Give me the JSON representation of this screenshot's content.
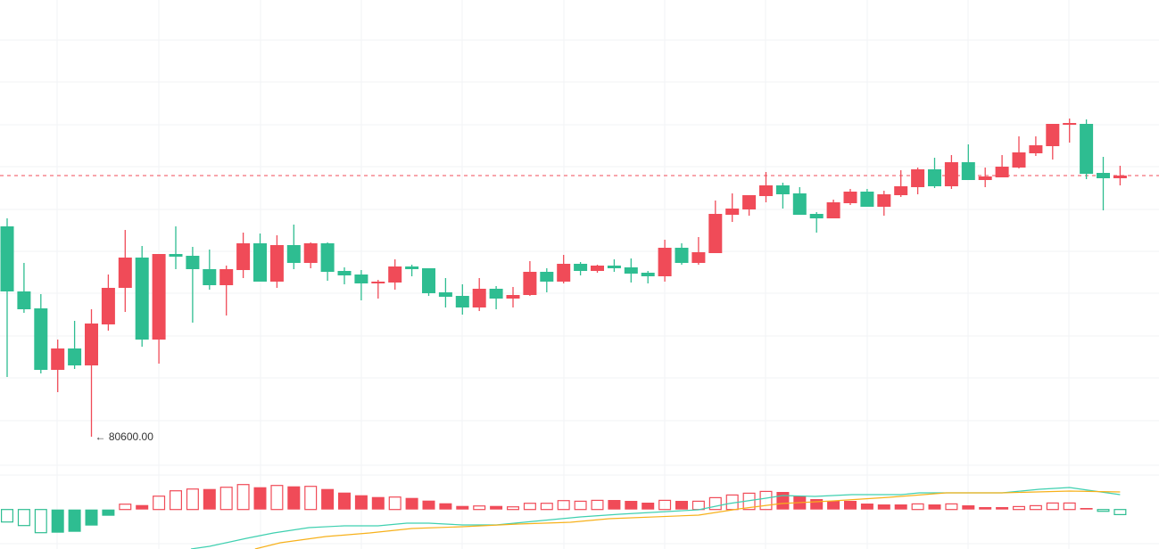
{
  "chart_data": {
    "type": "candlestick",
    "title": "",
    "colors": {
      "up": "#f04b58",
      "down": "#2ebd91",
      "dif": "#3fd0b0",
      "dea": "#f7b11b",
      "grid": "#f2f3f5",
      "last_price_line": "#f04b58"
    },
    "price_scale": {
      "ylim": [
        80000,
        90400
      ]
    },
    "last_price": 86460,
    "low_marker": {
      "value": 80600,
      "label": "← 80600.00",
      "index": 5
    },
    "candles_ohlc": [
      [
        85320,
        85500,
        81940,
        83860
      ],
      [
        83860,
        84500,
        83380,
        83460
      ],
      [
        83480,
        83800,
        82020,
        82100
      ],
      [
        82100,
        82780,
        81600,
        82580
      ],
      [
        82580,
        83200,
        82120,
        82200
      ],
      [
        82200,
        83460,
        80600,
        83140
      ],
      [
        83120,
        84240,
        82980,
        83940
      ],
      [
        83940,
        85240,
        83400,
        84620
      ],
      [
        84620,
        84880,
        82620,
        82780
      ],
      [
        82780,
        84700,
        82240,
        84700
      ],
      [
        84700,
        85320,
        84360,
        84640
      ],
      [
        84660,
        84860,
        83160,
        84360
      ],
      [
        84360,
        84800,
        83900,
        84000
      ],
      [
        84000,
        84440,
        83320,
        84360
      ],
      [
        84340,
        85180,
        84160,
        84940
      ],
      [
        84940,
        85160,
        84080,
        84080
      ],
      [
        84080,
        85120,
        83940,
        84900
      ],
      [
        84900,
        85360,
        84360,
        84500
      ],
      [
        84500,
        84960,
        84380,
        84940
      ],
      [
        84940,
        84960,
        84100,
        84300
      ],
      [
        84320,
        84400,
        84020,
        84220
      ],
      [
        84240,
        84340,
        83660,
        84040
      ],
      [
        84040,
        84120,
        83700,
        84080
      ],
      [
        84060,
        84580,
        83900,
        84420
      ],
      [
        84420,
        84460,
        84200,
        84360
      ],
      [
        84380,
        84380,
        83760,
        83820
      ],
      [
        83840,
        84160,
        83500,
        83740
      ],
      [
        83760,
        84020,
        83340,
        83500
      ],
      [
        83500,
        84160,
        83420,
        83920
      ],
      [
        83920,
        83980,
        83460,
        83700
      ],
      [
        83700,
        83960,
        83500,
        83780
      ],
      [
        83780,
        84540,
        83760,
        84300
      ],
      [
        84300,
        84380,
        83840,
        84080
      ],
      [
        84080,
        84680,
        84040,
        84480
      ],
      [
        84480,
        84520,
        84220,
        84320
      ],
      [
        84320,
        84460,
        84280,
        84440
      ],
      [
        84440,
        84580,
        84300,
        84380
      ],
      [
        84400,
        84600,
        84060,
        84260
      ],
      [
        84280,
        84320,
        84040,
        84200
      ],
      [
        84200,
        85020,
        84080,
        84840
      ],
      [
        84840,
        84940,
        84460,
        84500
      ],
      [
        84500,
        85080,
        84460,
        84740
      ],
      [
        84720,
        85900,
        84720,
        85600
      ],
      [
        85580,
        86060,
        85420,
        85720
      ],
      [
        85700,
        86020,
        85560,
        86020
      ],
      [
        86000,
        86540,
        85860,
        86240
      ],
      [
        86240,
        86300,
        85720,
        86040
      ],
      [
        86060,
        86200,
        85580,
        85580
      ],
      [
        85600,
        85640,
        85180,
        85500
      ],
      [
        85500,
        85920,
        85500,
        85860
      ],
      [
        85840,
        86160,
        85800,
        86100
      ],
      [
        86100,
        86160,
        85760,
        85760
      ],
      [
        85760,
        86120,
        85560,
        86040
      ],
      [
        86020,
        86580,
        85980,
        86220
      ],
      [
        86200,
        86640,
        86040,
        86600
      ],
      [
        86600,
        86860,
        86180,
        86220
      ],
      [
        86220,
        86920,
        86160,
        86760
      ],
      [
        86760,
        87160,
        86360,
        86360
      ],
      [
        86360,
        86640,
        86200,
        86440
      ],
      [
        86420,
        86920,
        86420,
        86660
      ],
      [
        86640,
        87340,
        86620,
        86980
      ],
      [
        86960,
        87340,
        86900,
        87140
      ],
      [
        87120,
        87620,
        86820,
        87620
      ],
      [
        87600,
        87740,
        87200,
        87640
      ],
      [
        87620,
        87720,
        86380,
        86500
      ],
      [
        86520,
        86880,
        85680,
        86400
      ],
      [
        86400,
        86680,
        86240,
        86460
      ]
    ],
    "macd": {
      "histogram": [
        -140,
        -180,
        -260,
        -260,
        -250,
        -180,
        -70,
        60,
        50,
        150,
        210,
        230,
        230,
        250,
        280,
        250,
        270,
        260,
        260,
        230,
        190,
        160,
        140,
        140,
        130,
        100,
        70,
        40,
        40,
        40,
        30,
        70,
        70,
        100,
        93,
        103,
        107,
        97,
        77,
        103,
        97,
        93,
        133,
        163,
        183,
        203,
        197,
        153,
        117,
        97,
        97,
        67,
        57,
        57,
        63,
        57,
        63,
        47,
        27,
        27,
        33,
        43,
        73,
        73,
        17,
        -20,
        -57
      ],
      "hollow": [
        1,
        1,
        1,
        0,
        0,
        0,
        0,
        1,
        0,
        1,
        1,
        1,
        0,
        1,
        1,
        0,
        1,
        0,
        1,
        0,
        0,
        0,
        0,
        1,
        0,
        0,
        0,
        0,
        1,
        0,
        1,
        1,
        1,
        1,
        1,
        1,
        0,
        0,
        0,
        1,
        0,
        1,
        1,
        1,
        1,
        1,
        0,
        0,
        0,
        0,
        0,
        0,
        0,
        0,
        1,
        0,
        1,
        0,
        0,
        0,
        1,
        1,
        1,
        1,
        0,
        1,
        1
      ],
      "dif": [
        [
          10.9,
          -443
        ],
        [
          12,
          -413
        ],
        [
          14.2,
          -323
        ],
        [
          15.8,
          -263
        ],
        [
          17.9,
          -203
        ],
        [
          20,
          -183
        ],
        [
          22,
          -183
        ],
        [
          23.7,
          -153
        ],
        [
          25,
          -153
        ],
        [
          27,
          -173
        ],
        [
          29,
          -173
        ],
        [
          31.2,
          -133
        ],
        [
          34,
          -83
        ],
        [
          36.3,
          -53
        ],
        [
          41,
          -3
        ],
        [
          42.8,
          67
        ],
        [
          45,
          127
        ],
        [
          46,
          157
        ],
        [
          47.9,
          147
        ],
        [
          50.1,
          167
        ],
        [
          53,
          167
        ],
        [
          54.1,
          187
        ],
        [
          57.7,
          187
        ],
        [
          59,
          187
        ],
        [
          61.2,
          227
        ],
        [
          63,
          247
        ],
        [
          64.1,
          217
        ],
        [
          66,
          167
        ]
      ],
      "dea": [
        [
          14.7,
          -443
        ],
        [
          16.2,
          -373
        ],
        [
          18.9,
          -303
        ],
        [
          21.5,
          -263
        ],
        [
          24,
          -213
        ],
        [
          27,
          -193
        ],
        [
          30.3,
          -163
        ],
        [
          33.4,
          -143
        ],
        [
          35.7,
          -103
        ],
        [
          41,
          -63
        ],
        [
          43.4,
          7
        ],
        [
          45.9,
          67
        ],
        [
          49,
          97
        ],
        [
          52.3,
          137
        ],
        [
          55.7,
          187
        ],
        [
          59,
          187
        ],
        [
          63,
          207
        ],
        [
          66,
          197
        ]
      ]
    }
  }
}
